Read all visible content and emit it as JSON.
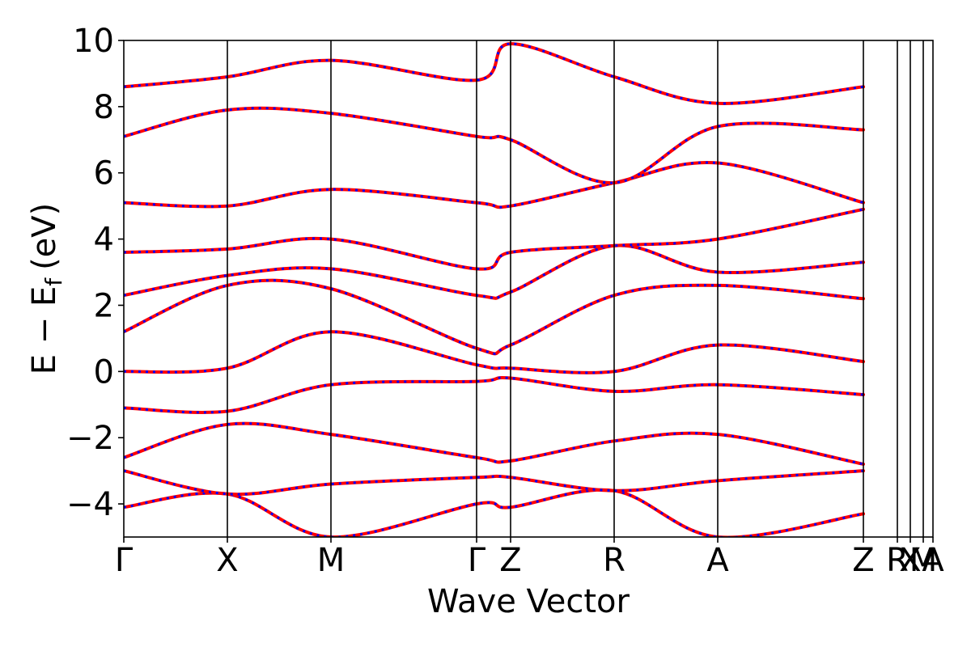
{
  "chart_data": {
    "type": "line",
    "title": "",
    "xlabel": "Wave Vector",
    "ylabel": "E − E",
    "ylabel_subscript": "f",
    "ylabel_unit": "(eV)",
    "ylim": [
      -5,
      10
    ],
    "yticks": [
      -4,
      -2,
      0,
      2,
      4,
      6,
      8,
      10
    ],
    "ytick_labels": [
      "−4",
      "−2",
      "0",
      "2",
      "4",
      "6",
      "8",
      "10"
    ],
    "kpath": {
      "labels": [
        "Γ",
        "X",
        "M",
        "Γ",
        "Z",
        "R",
        "A",
        "Z",
        "R",
        "X",
        "M",
        "A"
      ],
      "positions": [
        0,
        0.128,
        0.256,
        0.436,
        0.478,
        0.606,
        0.734,
        0.914,
        0.956,
        0.972,
        0.988,
        1.0
      ]
    },
    "series_colors": {
      "primary": "#ff0000",
      "secondary": "#0000ff"
    },
    "grid": false,
    "bands": [
      {
        "x": [
          0,
          0.128,
          0.256,
          0.436,
          0.478,
          0.606,
          0.734,
          0.914
        ],
        "y": [
          -4.1,
          -3.7,
          -5.0,
          -4.0,
          -4.1,
          -3.6,
          -5.0,
          -4.3
        ]
      },
      {
        "x": [
          0,
          0.128,
          0.256,
          0.436,
          0.478,
          0.606,
          0.734,
          0.914
        ],
        "y": [
          -3.0,
          -3.7,
          -3.4,
          -3.2,
          -3.2,
          -3.6,
          -3.3,
          -3.0
        ]
      },
      {
        "x": [
          0,
          0.128,
          0.256,
          0.436,
          0.478,
          0.606,
          0.734,
          0.914
        ],
        "y": [
          -2.6,
          -1.6,
          -1.9,
          -2.6,
          -2.7,
          -2.1,
          -1.9,
          -2.8
        ]
      },
      {
        "x": [
          0,
          0.128,
          0.256,
          0.436,
          0.478,
          0.606,
          0.734,
          0.914
        ],
        "y": [
          -1.1,
          -1.2,
          -0.4,
          -0.3,
          -0.2,
          -0.6,
          -0.4,
          -0.7
        ]
      },
      {
        "x": [
          0,
          0.128,
          0.256,
          0.436,
          0.478,
          0.606,
          0.734,
          0.914
        ],
        "y": [
          0.0,
          0.1,
          1.2,
          0.2,
          0.1,
          0.0,
          0.8,
          0.3
        ]
      },
      {
        "x": [
          0,
          0.128,
          0.256,
          0.436,
          0.478,
          0.606,
          0.734,
          0.914
        ],
        "y": [
          1.2,
          2.6,
          2.5,
          0.7,
          0.8,
          2.3,
          2.6,
          2.2
        ]
      },
      {
        "x": [
          0,
          0.128,
          0.256,
          0.436,
          0.478,
          0.606,
          0.734,
          0.914
        ],
        "y": [
          2.3,
          2.9,
          3.1,
          2.3,
          2.4,
          3.8,
          3.0,
          3.3
        ]
      },
      {
        "x": [
          0,
          0.128,
          0.256,
          0.436,
          0.478,
          0.606,
          0.734,
          0.914
        ],
        "y": [
          3.6,
          3.7,
          4.0,
          3.1,
          3.6,
          3.8,
          4.0,
          4.9
        ]
      },
      {
        "x": [
          0,
          0.128,
          0.256,
          0.436,
          0.478,
          0.606,
          0.734,
          0.914
        ],
        "y": [
          5.1,
          5.0,
          5.5,
          5.1,
          5.0,
          5.7,
          6.3,
          5.1
        ]
      },
      {
        "x": [
          0,
          0.128,
          0.256,
          0.436,
          0.478,
          0.606,
          0.734,
          0.914
        ],
        "y": [
          7.1,
          7.9,
          7.8,
          7.1,
          7.0,
          5.7,
          7.4,
          7.3
        ]
      },
      {
        "x": [
          0,
          0.128,
          0.256,
          0.436,
          0.478,
          0.606,
          0.734,
          0.914
        ],
        "y": [
          8.6,
          8.9,
          9.4,
          8.8,
          9.9,
          8.9,
          8.1,
          8.6
        ]
      }
    ]
  }
}
